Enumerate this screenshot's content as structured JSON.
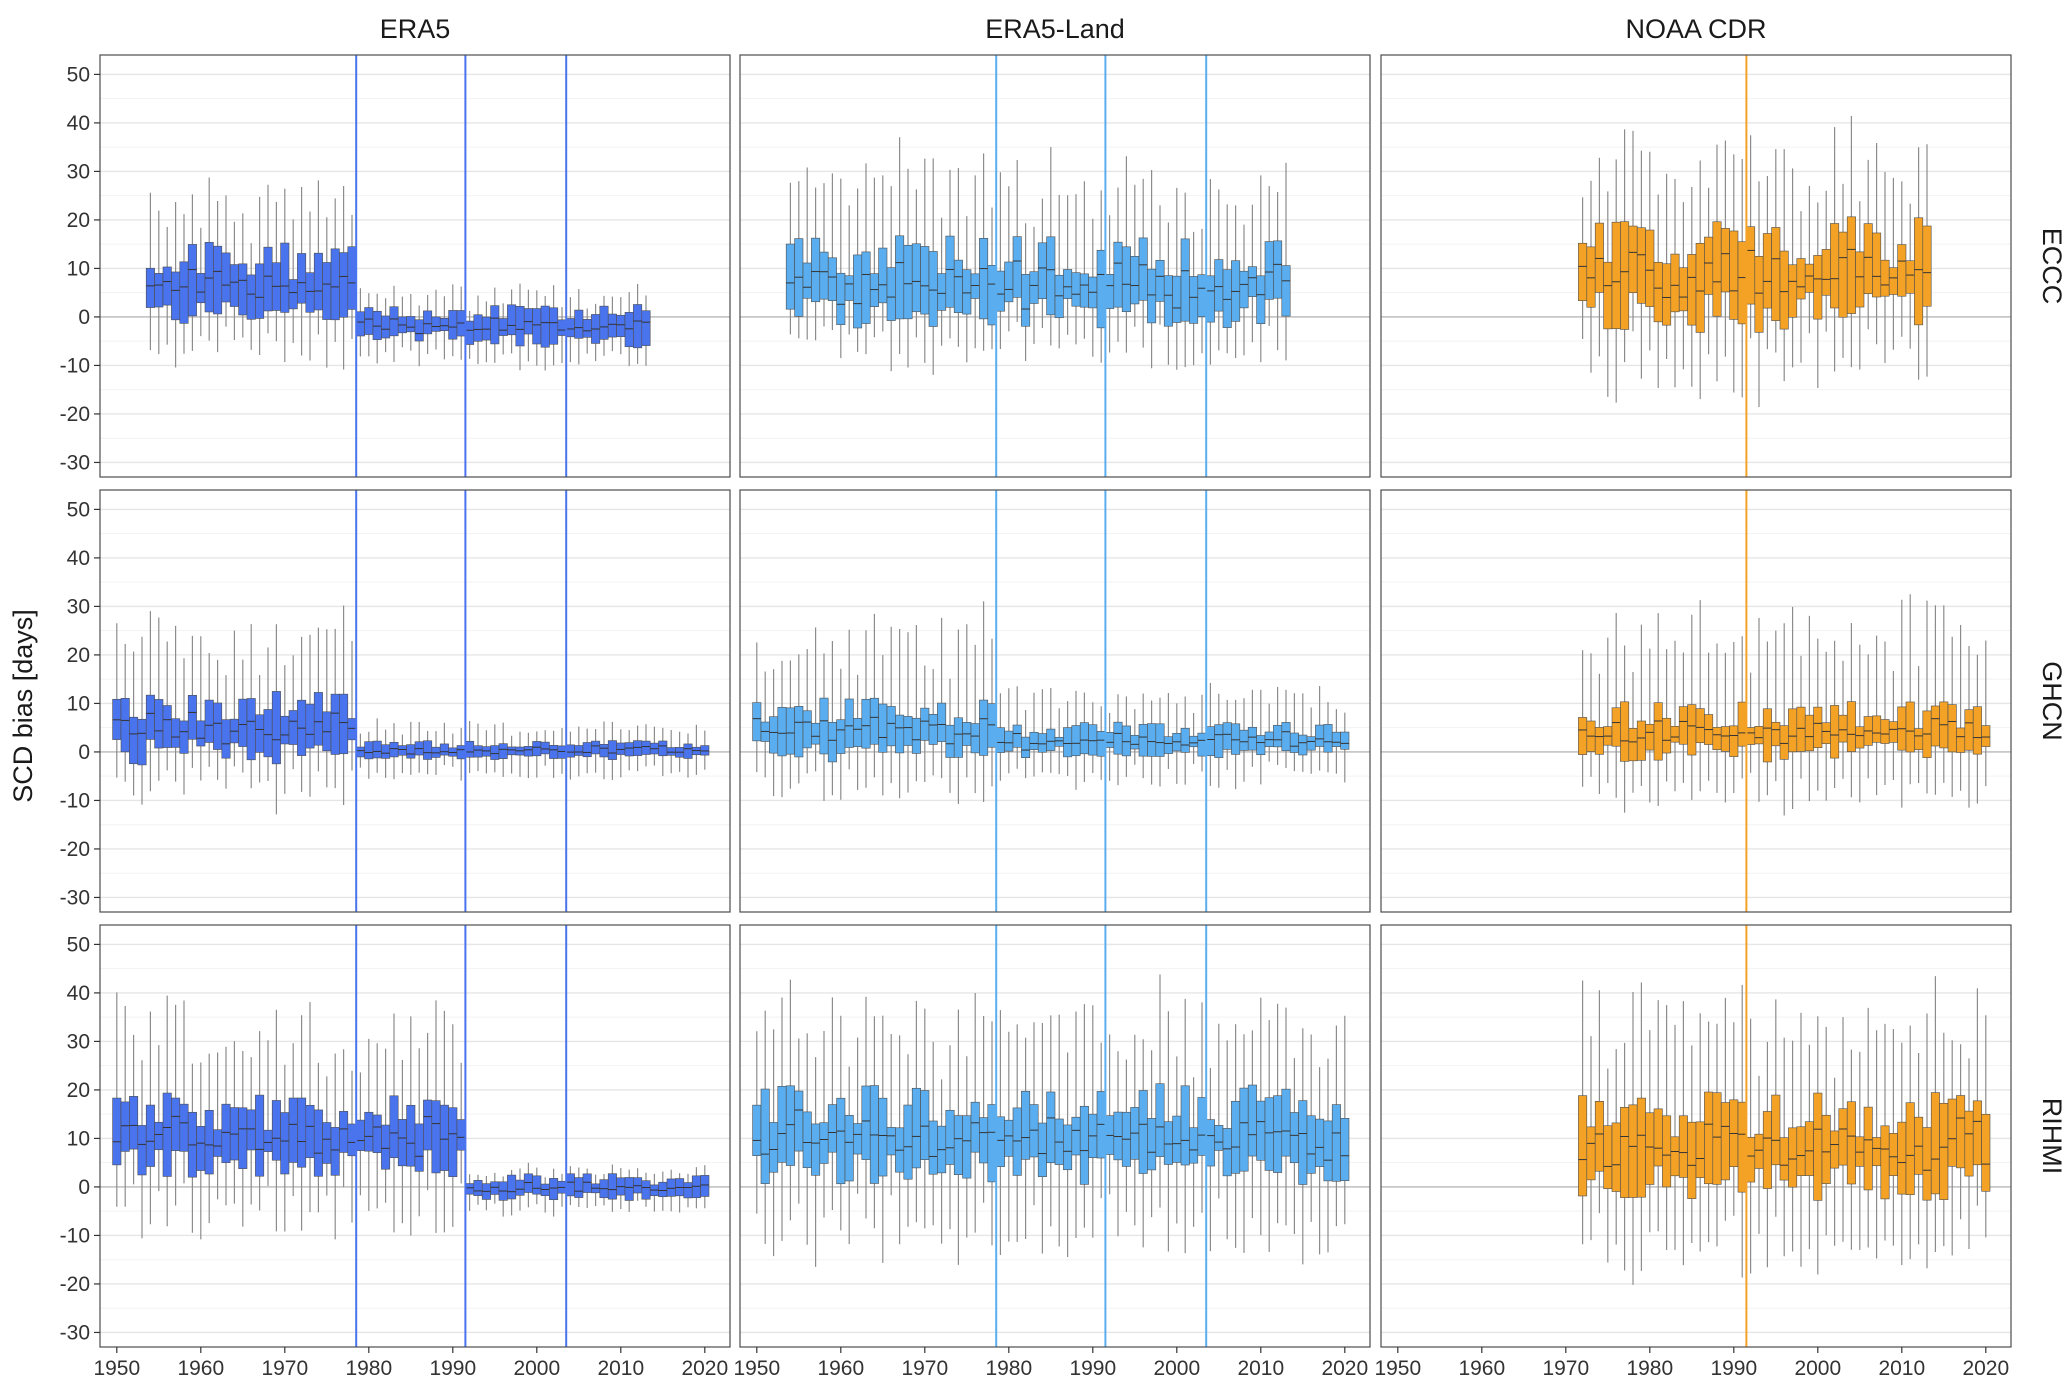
{
  "figure": {
    "ylabel": "SCD bias [days]"
  },
  "columns": [
    {
      "key": "era5",
      "label": "ERA5",
      "color": "#4a73ee",
      "breakpoints": [
        1978.5,
        1991.5,
        2003.5
      ]
    },
    {
      "key": "era5land",
      "label": "ERA5-Land",
      "color": "#5aaef0",
      "breakpoints": [
        1978.5,
        1991.5,
        2003.5
      ]
    },
    {
      "key": "noaa",
      "label": "NOAA CDR",
      "color": "#f4a226",
      "breakpoints": [
        1991.5
      ]
    }
  ],
  "rows": [
    {
      "key": "eccc",
      "label": "ECCC"
    },
    {
      "key": "ghcn",
      "label": "GHCN"
    },
    {
      "key": "rihmi",
      "label": "RIHMI"
    }
  ],
  "axes": {
    "x_ticks": [
      "1950",
      "1960",
      "1970",
      "1980",
      "1990",
      "2000",
      "2010",
      "2020"
    ],
    "x_tick_values": [
      1950,
      1960,
      1970,
      1980,
      1990,
      2000,
      2010,
      2020
    ],
    "xlim": [
      1948,
      2023
    ],
    "y_ticks": [
      "50",
      "40",
      "30",
      "20",
      "10",
      "0",
      "-10",
      "-20",
      "-30"
    ],
    "y_tick_values": [
      50,
      40,
      30,
      20,
      10,
      0,
      -10,
      -20,
      -30
    ],
    "ylim": [
      -33,
      54
    ],
    "grid": "horizontal major and minor lines",
    "zero_line": true
  },
  "chart_data": {
    "type": "boxplot",
    "description_unit": "annual box plots of SCD bias (days) by year, 3 reanalysis columns x 3 station-network rows",
    "panels": [
      {
        "column": "ERA5",
        "row": "ECCC",
        "segments": [
          {
            "start": 1954,
            "end": 1978,
            "q1": 1,
            "med": 5,
            "q3": 11,
            "wlo": -8,
            "whi": 24
          },
          {
            "start": 1979,
            "end": 1991,
            "q1": -4,
            "med": -2,
            "q3": 0,
            "wlo": -9,
            "whi": 5
          },
          {
            "start": 1992,
            "end": 2013,
            "q1": -5,
            "med": -2,
            "q3": 0,
            "wlo": -10,
            "whi": 4
          }
        ]
      },
      {
        "column": "ERA5-Land",
        "row": "ECCC",
        "segments": [
          {
            "start": 1954,
            "end": 2013,
            "q1": 1,
            "med": 6,
            "q3": 12,
            "wlo": -8,
            "whi": 30
          }
        ]
      },
      {
        "column": "NOAA CDR",
        "row": "ECCC",
        "segments": [
          {
            "start": 1972,
            "end": 2013,
            "q1": 1,
            "med": 8,
            "q3": 15,
            "wlo": -12,
            "whi": 33
          }
        ]
      },
      {
        "column": "ERA5",
        "row": "GHCN",
        "segments": [
          {
            "start": 1950,
            "end": 1978,
            "q1": 0,
            "med": 4,
            "q3": 9,
            "wlo": -9,
            "whi": 25
          },
          {
            "start": 1979,
            "end": 2020,
            "q1": -1,
            "med": 0,
            "q3": 1,
            "wlo": -5,
            "whi": 5
          }
        ]
      },
      {
        "column": "ERA5-Land",
        "row": "GHCN",
        "segments": [
          {
            "start": 1950,
            "end": 1978,
            "q1": 0,
            "med": 3,
            "q3": 8,
            "wlo": -9,
            "whi": 25
          },
          {
            "start": 1979,
            "end": 2020,
            "q1": 0,
            "med": 1,
            "q3": 4,
            "wlo": -6,
            "whi": 12
          }
        ]
      },
      {
        "column": "NOAA CDR",
        "row": "GHCN",
        "segments": [
          {
            "start": 1972,
            "end": 2020,
            "q1": 0,
            "med": 2,
            "q3": 7,
            "wlo": -10,
            "whi": 26
          }
        ]
      },
      {
        "column": "ERA5",
        "row": "RIHMI",
        "segments": [
          {
            "start": 1950,
            "end": 1991,
            "q1": 5,
            "med": 9,
            "q3": 15,
            "wlo": -8,
            "whi": 34
          },
          {
            "start": 1992,
            "end": 2020,
            "q1": -2,
            "med": -1,
            "q3": 1,
            "wlo": -5,
            "whi": 3
          }
        ]
      },
      {
        "column": "ERA5-Land",
        "row": "RIHMI",
        "segments": [
          {
            "start": 1950,
            "end": 2020,
            "q1": 4,
            "med": 9,
            "q3": 16,
            "wlo": -12,
            "whi": 35
          }
        ]
      },
      {
        "column": "NOAA CDR",
        "row": "RIHMI",
        "segments": [
          {
            "start": 1972,
            "end": 2020,
            "q1": 1,
            "med": 7,
            "q3": 14,
            "wlo": -15,
            "whi": 35
          }
        ]
      }
    ]
  }
}
